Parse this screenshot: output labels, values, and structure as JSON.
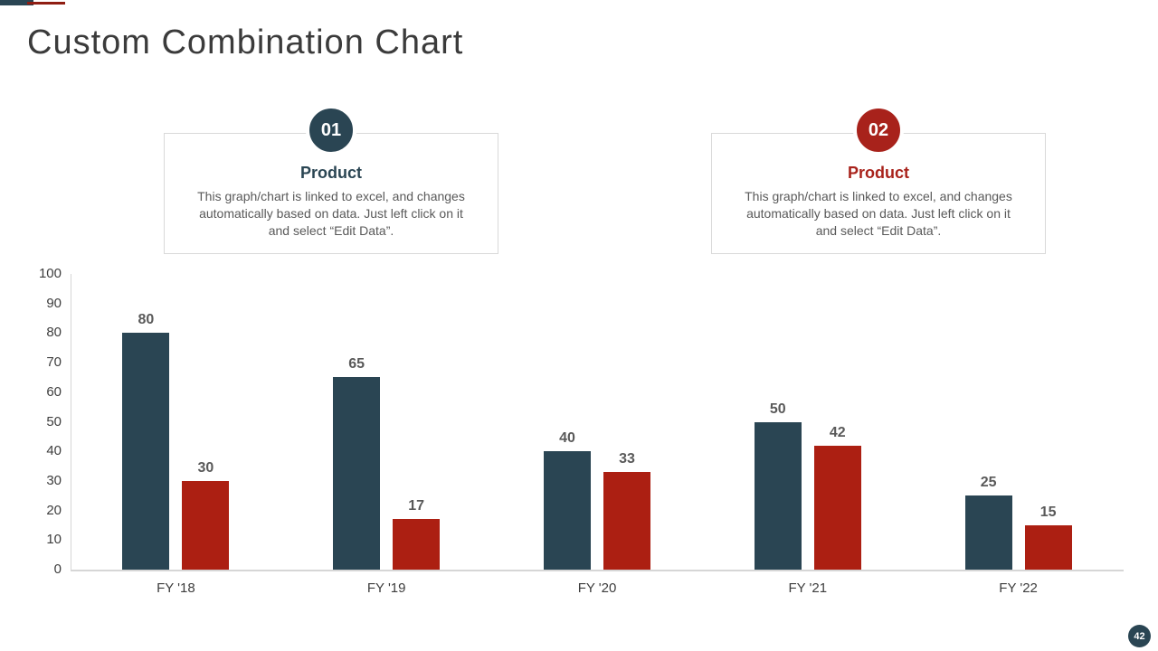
{
  "slide": {
    "title": "Custom Combination Chart",
    "page_number": "42"
  },
  "colors": {
    "teal": "#2a4553",
    "red": "#ac1f12",
    "axis_gray": "#d6d6d6",
    "text_gray": "#595959"
  },
  "info_boxes": [
    {
      "badge": "01",
      "heading": "Product",
      "body": "This graph/chart is linked to excel, and changes automatically based on data. Just left click on it and select “Edit Data”.",
      "accent_color": "#2a4553"
    },
    {
      "badge": "02",
      "heading": "Product",
      "body": "This graph/chart is linked to excel, and changes automatically based on data. Just left click on it and select “Edit Data”.",
      "accent_color": "#a8221b"
    }
  ],
  "chart_data": {
    "type": "bar",
    "categories": [
      "FY '18",
      "FY '19",
      "FY '20",
      "FY '21",
      "FY '22"
    ],
    "series": [
      {
        "name": "Product 01",
        "color": "#2a4553",
        "values": [
          80,
          65,
          40,
          50,
          25
        ]
      },
      {
        "name": "Product 02",
        "color": "#ac1f12",
        "values": [
          30,
          17,
          33,
          42,
          15
        ]
      }
    ],
    "title": "",
    "xlabel": "",
    "ylabel": "",
    "ylim": [
      0,
      100
    ],
    "ytick_step": 10,
    "grid": false,
    "legend": false,
    "data_labels": true
  }
}
